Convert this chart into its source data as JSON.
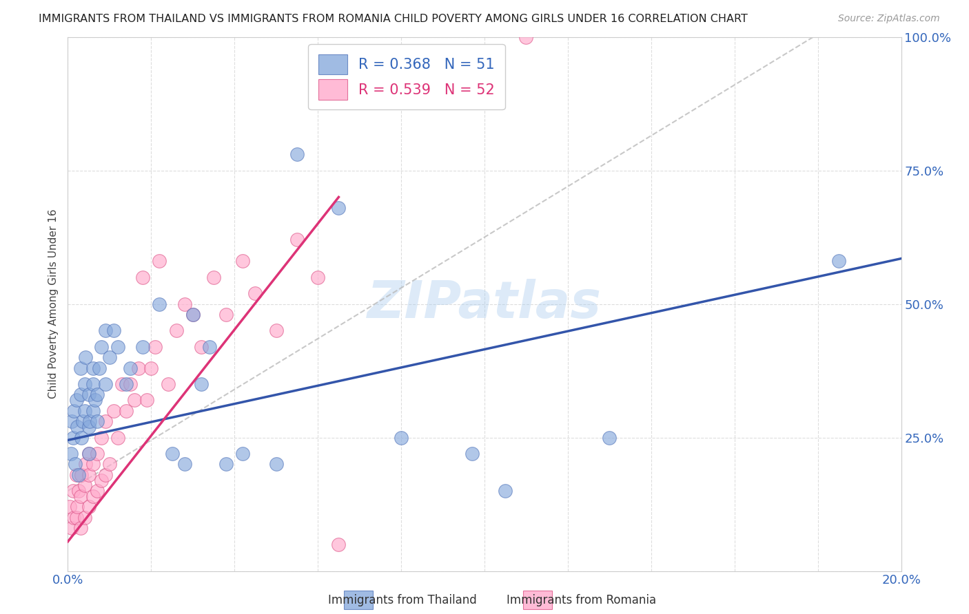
{
  "title": "IMMIGRANTS FROM THAILAND VS IMMIGRANTS FROM ROMANIA CHILD POVERTY AMONG GIRLS UNDER 16 CORRELATION CHART",
  "source": "Source: ZipAtlas.com",
  "ylabel": "Child Poverty Among Girls Under 16",
  "xlim": [
    0.0,
    0.2
  ],
  "ylim": [
    0.0,
    1.0
  ],
  "xticks": [
    0.0,
    0.02,
    0.04,
    0.06,
    0.08,
    0.1,
    0.12,
    0.14,
    0.16,
    0.18,
    0.2
  ],
  "yticks": [
    0.0,
    0.25,
    0.5,
    0.75,
    1.0
  ],
  "thailand_color": "#88AADD",
  "thailand_edge_color": "#5577BB",
  "romania_color": "#FFAACC",
  "romania_edge_color": "#DD5588",
  "thailand_R": 0.368,
  "thailand_N": 51,
  "romania_R": 0.539,
  "romania_N": 52,
  "thailand_line_color": "#3355AA",
  "romania_line_color": "#DD3377",
  "diag_color": "#BBBBBB",
  "watermark": "ZIPatlas",
  "watermark_color": "#AACCEE",
  "background_color": "#ffffff",
  "grid_color": "#DDDDDD",
  "thailand_x": [
    0.0008,
    0.001,
    0.0012,
    0.0015,
    0.0018,
    0.002,
    0.0022,
    0.0025,
    0.003,
    0.003,
    0.0032,
    0.0035,
    0.004,
    0.004,
    0.0042,
    0.005,
    0.005,
    0.005,
    0.0052,
    0.006,
    0.006,
    0.006,
    0.0065,
    0.007,
    0.007,
    0.0075,
    0.008,
    0.009,
    0.009,
    0.01,
    0.011,
    0.012,
    0.014,
    0.015,
    0.018,
    0.022,
    0.025,
    0.028,
    0.03,
    0.032,
    0.034,
    0.038,
    0.042,
    0.05,
    0.055,
    0.065,
    0.08,
    0.097,
    0.105,
    0.13,
    0.185
  ],
  "thailand_y": [
    0.22,
    0.28,
    0.25,
    0.3,
    0.2,
    0.32,
    0.27,
    0.18,
    0.33,
    0.38,
    0.25,
    0.28,
    0.3,
    0.35,
    0.4,
    0.22,
    0.27,
    0.33,
    0.28,
    0.35,
    0.3,
    0.38,
    0.32,
    0.28,
    0.33,
    0.38,
    0.42,
    0.45,
    0.35,
    0.4,
    0.45,
    0.42,
    0.35,
    0.38,
    0.42,
    0.5,
    0.22,
    0.2,
    0.48,
    0.35,
    0.42,
    0.2,
    0.22,
    0.2,
    0.78,
    0.68,
    0.25,
    0.22,
    0.15,
    0.25,
    0.58
  ],
  "romania_x": [
    0.0005,
    0.001,
    0.0012,
    0.0015,
    0.002,
    0.002,
    0.0022,
    0.0025,
    0.003,
    0.003,
    0.0032,
    0.004,
    0.004,
    0.0042,
    0.005,
    0.005,
    0.005,
    0.006,
    0.006,
    0.007,
    0.007,
    0.008,
    0.008,
    0.009,
    0.009,
    0.01,
    0.011,
    0.012,
    0.013,
    0.014,
    0.015,
    0.016,
    0.017,
    0.018,
    0.019,
    0.02,
    0.021,
    0.022,
    0.024,
    0.026,
    0.028,
    0.03,
    0.032,
    0.035,
    0.038,
    0.042,
    0.045,
    0.05,
    0.055,
    0.06,
    0.065,
    0.11
  ],
  "romania_y": [
    0.12,
    0.08,
    0.15,
    0.1,
    0.1,
    0.18,
    0.12,
    0.15,
    0.08,
    0.14,
    0.18,
    0.1,
    0.16,
    0.2,
    0.12,
    0.18,
    0.22,
    0.14,
    0.2,
    0.15,
    0.22,
    0.17,
    0.25,
    0.18,
    0.28,
    0.2,
    0.3,
    0.25,
    0.35,
    0.3,
    0.35,
    0.32,
    0.38,
    0.55,
    0.32,
    0.38,
    0.42,
    0.58,
    0.35,
    0.45,
    0.5,
    0.48,
    0.42,
    0.55,
    0.48,
    0.58,
    0.52,
    0.45,
    0.62,
    0.55,
    0.05,
    1.0
  ],
  "thailand_trend_x0": 0.0,
  "thailand_trend_y0": 0.245,
  "thailand_trend_x1": 0.2,
  "thailand_trend_y1": 0.585,
  "romania_trend_x0": 0.0,
  "romania_trend_y0": 0.055,
  "romania_trend_x1": 0.065,
  "romania_trend_y1": 0.7
}
